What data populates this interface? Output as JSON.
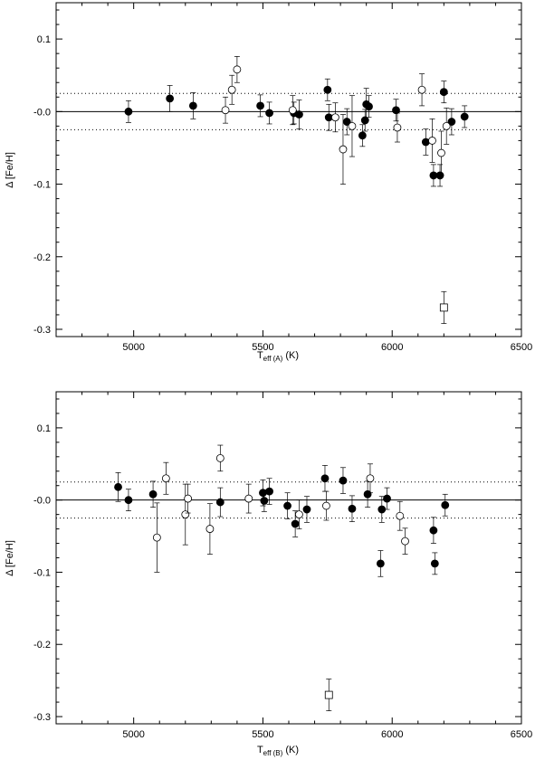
{
  "chart_data": [
    {
      "type": "scatter",
      "panel": "top",
      "xlabel_main": "T",
      "xlabel_sub": "eff (A)",
      "xlabel_unit": "(K)",
      "ylabel": "Δ [Fe/H]",
      "xlim": [
        4700,
        6500
      ],
      "ylim": [
        -0.31,
        0.15
      ],
      "x_ticks": [
        5000,
        5500,
        6000,
        6500
      ],
      "y_ticks": [
        0.1,
        0.0,
        -0.1,
        -0.2,
        -0.3
      ],
      "y_tick_labels": [
        "0.1",
        "-0.0",
        "-0.1",
        "-0.2",
        "-0.3"
      ],
      "reference_lines": {
        "solid": 0.0,
        "dotted": [
          0.025,
          -0.025
        ]
      },
      "series": [
        {
          "marker": "filled-circle",
          "points": [
            {
              "x": 4980,
              "y": 0.0,
              "err": 0.015
            },
            {
              "x": 5140,
              "y": 0.018,
              "err": 0.018
            },
            {
              "x": 5230,
              "y": 0.008,
              "err": 0.018
            },
            {
              "x": 5490,
              "y": 0.008,
              "err": 0.015
            },
            {
              "x": 5525,
              "y": -0.002,
              "err": 0.015
            },
            {
              "x": 5620,
              "y": -0.002,
              "err": 0.015
            },
            {
              "x": 5640,
              "y": -0.004,
              "err": 0.02
            },
            {
              "x": 5750,
              "y": 0.03,
              "err": 0.015
            },
            {
              "x": 5755,
              "y": -0.008,
              "err": 0.018
            },
            {
              "x": 5825,
              "y": -0.014,
              "err": 0.018
            },
            {
              "x": 5885,
              "y": -0.033,
              "err": 0.015
            },
            {
              "x": 5895,
              "y": -0.012,
              "err": 0.015
            },
            {
              "x": 5900,
              "y": 0.01,
              "err": 0.022
            },
            {
              "x": 5910,
              "y": 0.007,
              "err": 0.015
            },
            {
              "x": 6015,
              "y": 0.002,
              "err": 0.015
            },
            {
              "x": 6130,
              "y": -0.042,
              "err": 0.018
            },
            {
              "x": 6160,
              "y": -0.088,
              "err": 0.015
            },
            {
              "x": 6185,
              "y": -0.088,
              "err": 0.015
            },
            {
              "x": 6200,
              "y": 0.027,
              "err": 0.015
            },
            {
              "x": 6230,
              "y": -0.014,
              "err": 0.018
            },
            {
              "x": 6280,
              "y": -0.007,
              "err": 0.015
            }
          ]
        },
        {
          "marker": "open-circle",
          "points": [
            {
              "x": 5355,
              "y": 0.002,
              "err": 0.018
            },
            {
              "x": 5380,
              "y": 0.03,
              "err": 0.02
            },
            {
              "x": 5400,
              "y": 0.058,
              "err": 0.018
            },
            {
              "x": 5615,
              "y": 0.002,
              "err": 0.02
            },
            {
              "x": 5780,
              "y": -0.008,
              "err": 0.02
            },
            {
              "x": 5810,
              "y": -0.052,
              "err": 0.048
            },
            {
              "x": 5845,
              "y": -0.02,
              "err": 0.042
            },
            {
              "x": 6020,
              "y": -0.022,
              "err": 0.02
            },
            {
              "x": 6115,
              "y": 0.03,
              "err": 0.022
            },
            {
              "x": 6155,
              "y": -0.04,
              "err": 0.03
            },
            {
              "x": 6190,
              "y": -0.057,
              "err": 0.03
            },
            {
              "x": 6210,
              "y": -0.02,
              "err": 0.025
            }
          ]
        },
        {
          "marker": "open-square",
          "points": [
            {
              "x": 6200,
              "y": -0.27,
              "err": 0.022
            }
          ]
        }
      ]
    },
    {
      "type": "scatter",
      "panel": "bottom",
      "xlabel_main": "T",
      "xlabel_sub": "eff (B)",
      "xlabel_unit": "(K)",
      "ylabel": "Δ [Fe/H]",
      "xlim": [
        4700,
        6500
      ],
      "ylim": [
        -0.31,
        0.15
      ],
      "x_ticks": [
        5000,
        5500,
        6000,
        6500
      ],
      "y_ticks": [
        0.1,
        0.0,
        -0.1,
        -0.2,
        -0.3
      ],
      "y_tick_labels": [
        "0.1",
        "-0.0",
        "-0.1",
        "-0.2",
        "-0.3"
      ],
      "reference_lines": {
        "solid": 0.0,
        "dotted": [
          0.025,
          -0.025
        ]
      },
      "series": [
        {
          "marker": "filled-circle",
          "points": [
            {
              "x": 4940,
              "y": 0.018,
              "err": 0.02
            },
            {
              "x": 4980,
              "y": 0.0,
              "err": 0.015
            },
            {
              "x": 5075,
              "y": 0.008,
              "err": 0.018
            },
            {
              "x": 5335,
              "y": -0.003,
              "err": 0.02
            },
            {
              "x": 5500,
              "y": 0.01,
              "err": 0.018
            },
            {
              "x": 5505,
              "y": -0.001,
              "err": 0.015
            },
            {
              "x": 5525,
              "y": 0.012,
              "err": 0.018
            },
            {
              "x": 5595,
              "y": -0.008,
              "err": 0.018
            },
            {
              "x": 5625,
              "y": -0.033,
              "err": 0.018
            },
            {
              "x": 5670,
              "y": -0.013,
              "err": 0.018
            },
            {
              "x": 5740,
              "y": 0.03,
              "err": 0.018
            },
            {
              "x": 5810,
              "y": 0.027,
              "err": 0.018
            },
            {
              "x": 5845,
              "y": -0.012,
              "err": 0.018
            },
            {
              "x": 5905,
              "y": 0.008,
              "err": 0.018
            },
            {
              "x": 5955,
              "y": -0.088,
              "err": 0.018
            },
            {
              "x": 5960,
              "y": -0.013,
              "err": 0.018
            },
            {
              "x": 5980,
              "y": 0.002,
              "err": 0.015
            },
            {
              "x": 6160,
              "y": -0.042,
              "err": 0.018
            },
            {
              "x": 6165,
              "y": -0.088,
              "err": 0.015
            },
            {
              "x": 6205,
              "y": -0.007,
              "err": 0.015
            }
          ]
        },
        {
          "marker": "open-circle",
          "points": [
            {
              "x": 5090,
              "y": -0.052,
              "err": 0.048
            },
            {
              "x": 5125,
              "y": 0.03,
              "err": 0.022
            },
            {
              "x": 5200,
              "y": -0.02,
              "err": 0.042
            },
            {
              "x": 5210,
              "y": 0.002,
              "err": 0.02
            },
            {
              "x": 5295,
              "y": -0.04,
              "err": 0.035
            },
            {
              "x": 5335,
              "y": 0.058,
              "err": 0.018
            },
            {
              "x": 5445,
              "y": 0.002,
              "err": 0.02
            },
            {
              "x": 5640,
              "y": -0.02,
              "err": 0.02
            },
            {
              "x": 5745,
              "y": -0.008,
              "err": 0.02
            },
            {
              "x": 5915,
              "y": 0.03,
              "err": 0.02
            },
            {
              "x": 6030,
              "y": -0.022,
              "err": 0.02
            },
            {
              "x": 6050,
              "y": -0.057,
              "err": 0.018
            }
          ]
        },
        {
          "marker": "open-square",
          "points": [
            {
              "x": 5755,
              "y": -0.27,
              "err": 0.022
            }
          ]
        }
      ]
    }
  ]
}
